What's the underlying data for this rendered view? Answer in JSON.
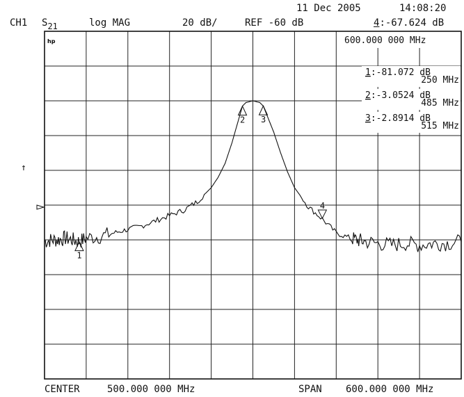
{
  "header": {
    "date": "11 Dec 2005",
    "time": "14:08:20",
    "channel": "CH1",
    "param_main": "S",
    "param_sub": "21",
    "format": "log MAG",
    "scale": "20 dB/",
    "ref": "REF -60 dB",
    "active_marker_num": "4",
    "active_marker_value": ":-67.624 dB",
    "active_marker_freq": "600.000 000 MHz",
    "hp_logo": "hp"
  },
  "footer": {
    "center_label": "CENTER",
    "center_value": "500.000 000 MHz",
    "span_label": "SPAN",
    "span_value": "600.000 000 MHz"
  },
  "side_glyphs": {
    "ref_arrow": "↑"
  },
  "markers": [
    {
      "num": "1",
      "value": ":-81.072 dB",
      "freq": "250 MHz",
      "x_mhz": 250,
      "y_db": -81.072
    },
    {
      "num": "2",
      "value": ":-3.0524 dB",
      "freq": "485 MHz",
      "x_mhz": 485,
      "y_db": -3.0524
    },
    {
      "num": "3",
      "value": ":-2.8914 dB",
      "freq": "515 MHz",
      "x_mhz": 515,
      "y_db": -2.8914
    },
    {
      "num": "4",
      "value": ":-67.624 dB",
      "freq": "600 MHz",
      "x_mhz": 600,
      "y_db": -67.624
    }
  ],
  "chart_data": {
    "type": "line",
    "title": "",
    "xlabel": "",
    "ylabel": "",
    "xlim": [
      200,
      800
    ],
    "ylim": [
      -160,
      40
    ],
    "grid": true,
    "x_divisions": 10,
    "y_divisions": 10,
    "series": [
      {
        "x": [
          200,
          210,
          220,
          230,
          240,
          250,
          260,
          280,
          300,
          320,
          340,
          360,
          380,
          400,
          420,
          440,
          450,
          460,
          470,
          480,
          485,
          490,
          500,
          510,
          515,
          520,
          530,
          540,
          550,
          560,
          580,
          600,
          620,
          640,
          650,
          660,
          680,
          700,
          720,
          740,
          760,
          780,
          800
        ],
        "y": [
          -81,
          -80,
          -80,
          -79,
          -80,
          -81,
          -79,
          -78,
          -76,
          -74,
          -72,
          -69,
          -66,
          -63,
          -58,
          -50,
          -44,
          -36,
          -24,
          -10,
          -3,
          -1,
          0,
          -1,
          -3,
          -8,
          -18,
          -30,
          -41,
          -50,
          -61,
          -68,
          -76,
          -79,
          -80,
          -81,
          -82,
          -83,
          -82,
          -83,
          -82,
          -82,
          -81
        ]
      }
    ]
  }
}
